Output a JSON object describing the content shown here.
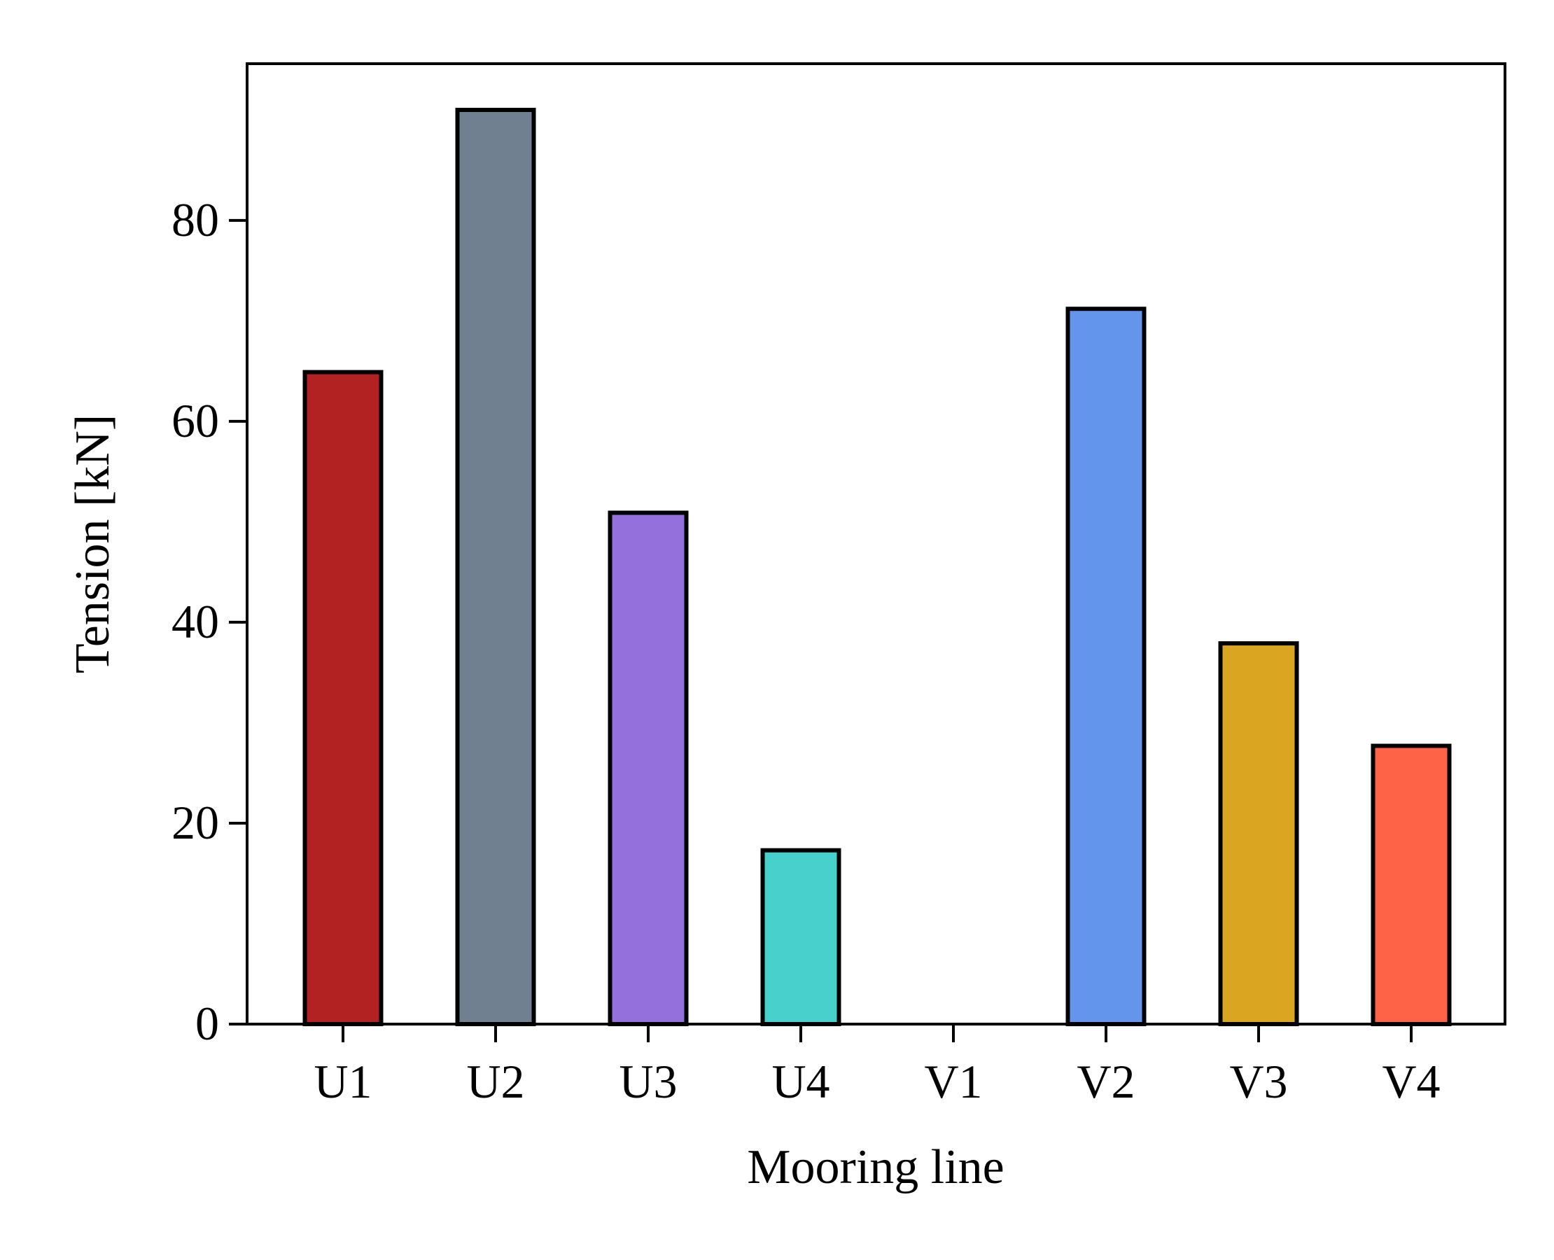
{
  "chart_data": {
    "type": "bar",
    "title": "",
    "xlabel": "Mooring line",
    "ylabel": "Tension [kN]",
    "categories": [
      "U1",
      "U2",
      "U3",
      "U4",
      "V1",
      "V2",
      "V3",
      "V4"
    ],
    "values": [
      64.9,
      91.0,
      50.9,
      17.3,
      0.0,
      71.2,
      37.9,
      27.7
    ],
    "colors": [
      "#b22222",
      "#708090",
      "#9370db",
      "#48d1cc",
      "#ffffff",
      "#6495ed",
      "#daa520",
      "#ff6347"
    ],
    "ylim": [
      0,
      95.6
    ],
    "yticks": [
      0,
      20,
      40,
      60,
      80
    ],
    "ytick_labels": [
      "0",
      "20",
      "40",
      "60",
      "80"
    ],
    "grid": false,
    "legend": "none",
    "edge_color": "#000000"
  }
}
